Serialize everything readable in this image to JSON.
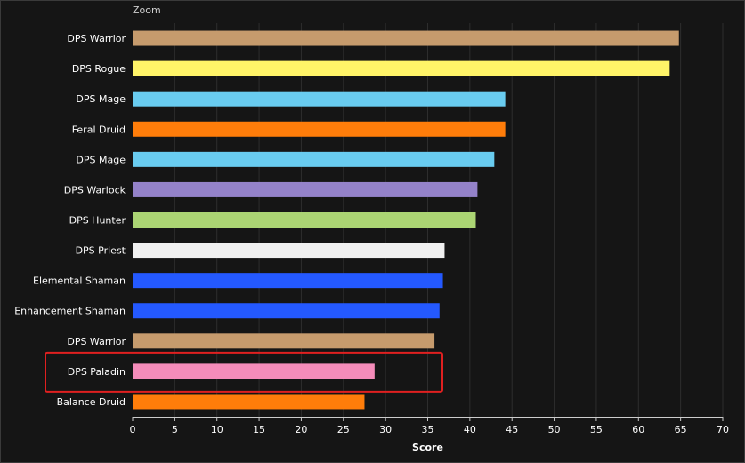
{
  "zoom_label": "Zoom",
  "chart_data": {
    "type": "bar",
    "orientation": "horizontal",
    "categories": [
      "DPS Warrior",
      "DPS Rogue",
      "DPS Mage",
      "Feral Druid",
      "DPS Mage",
      "DPS Warlock",
      "DPS Hunter",
      "DPS Priest",
      "Elemental Shaman",
      "Enhancement Shaman",
      "DPS Warrior",
      "DPS Paladin",
      "Balance Druid"
    ],
    "values": [
      64.8,
      63.7,
      44.2,
      44.2,
      42.9,
      40.9,
      40.7,
      37.0,
      36.8,
      36.4,
      35.8,
      28.7,
      27.5
    ],
    "colors": [
      "#C69B6D",
      "#FFF468",
      "#69CCF0",
      "#FF7D0A",
      "#69CCF0",
      "#9482C9",
      "#ABD473",
      "#F0F0F0",
      "#2459FF",
      "#2459FF",
      "#C69B6D",
      "#F58CBA",
      "#FF7D0A"
    ],
    "xlabel": "Score",
    "xlim": [
      0,
      70
    ],
    "xticks": [
      0,
      5,
      10,
      15,
      20,
      25,
      30,
      35,
      40,
      45,
      50,
      55,
      60,
      65,
      70
    ],
    "grid": true,
    "highlight_category": "DPS Paladin",
    "highlight_color": "#E02020"
  }
}
